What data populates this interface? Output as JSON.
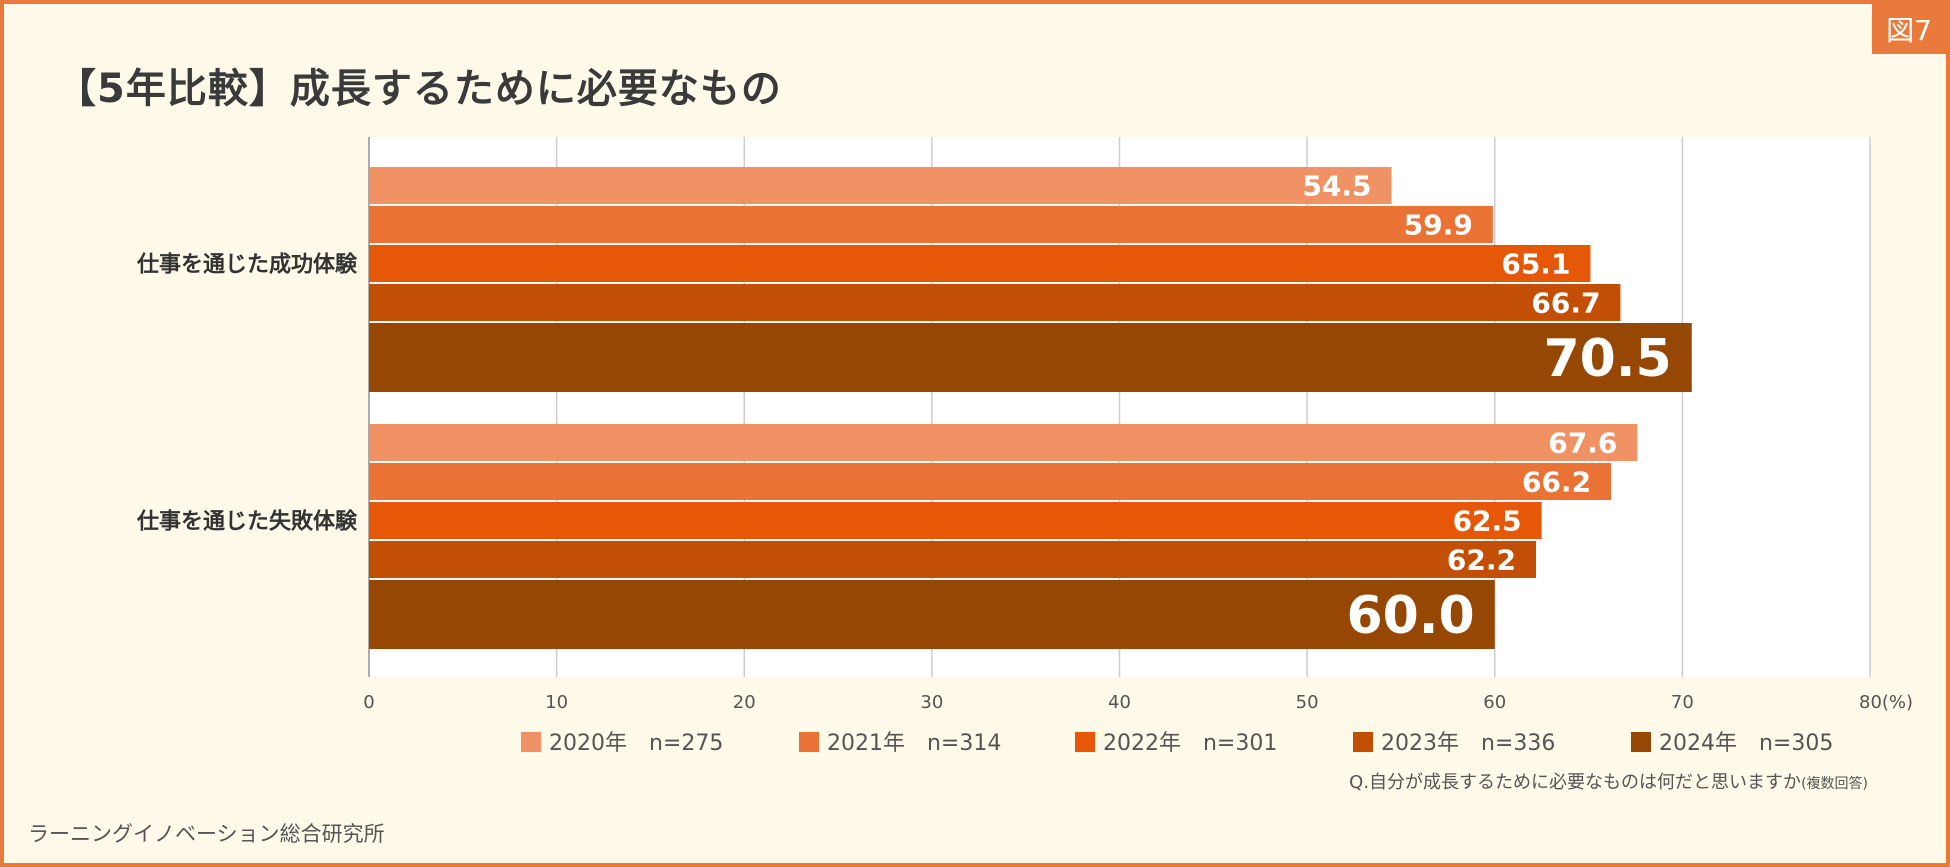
{
  "badge": "図7",
  "title": "【5年比較】成長するために必要なもの",
  "footer": "ラーニングイノベーション総合研究所",
  "question": "Q.自分が成長するために必要なものは何だと思いますか",
  "question_note": "(複数回答)",
  "chart_data": {
    "type": "bar",
    "orientation": "horizontal",
    "categories": [
      "仕事を通じた成功体験",
      "仕事を通じた失敗体験"
    ],
    "series": [
      {
        "name": "2020年　n=275",
        "color": "#F09263",
        "values": [
          54.5,
          67.6
        ]
      },
      {
        "name": "2021年　n=314",
        "color": "#EA7234",
        "values": [
          59.9,
          66.2
        ]
      },
      {
        "name": "2022年　n=301",
        "color": "#E65808",
        "values": [
          65.1,
          62.5
        ]
      },
      {
        "name": "2023年　n=336",
        "color": "#C24F05",
        "values": [
          66.7,
          62.2
        ]
      },
      {
        "name": "2024年　n=305",
        "color": "#964703",
        "values": [
          70.5,
          60.0
        ]
      }
    ],
    "xlim": [
      0,
      80
    ],
    "xticks": [
      0,
      10,
      20,
      30,
      40,
      50,
      60,
      70,
      80
    ],
    "xtick_labels": [
      "0",
      "10",
      "20",
      "30",
      "40",
      "50",
      "60",
      "70",
      "80(%)"
    ],
    "grid": true,
    "legend_position": "bottom"
  }
}
